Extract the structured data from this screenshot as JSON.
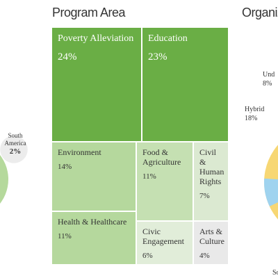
{
  "chart_data": [
    {
      "type": "bubble",
      "categories": [
        "South America"
      ],
      "values": [
        2
      ],
      "value_labels": [
        "2%"
      ],
      "color": "#ececec"
    },
    {
      "type": "treemap",
      "title": "Program Area",
      "categories": [
        "Poverty Alleviation",
        "Education",
        "Environment",
        "Health & Healthcare",
        "Food & Agriculture",
        "Civil & Human Rights",
        "Civic Engagement",
        "Arts & Culture"
      ],
      "values": [
        24,
        23,
        14,
        11,
        11,
        7,
        6,
        4
      ],
      "value_labels": [
        "24%",
        "23%",
        "14%",
        "11%",
        "11%",
        "7%",
        "6%",
        "4%"
      ],
      "colors": [
        "#6aae45",
        "#6aae45",
        "#b5d89d",
        "#b5d89d",
        "#c5e0b2",
        "#dbe9d1",
        "#e1edd9",
        "#e9e9e9"
      ]
    },
    {
      "type": "pie",
      "title": "Organiz",
      "categories": [
        "Hybrid",
        "Und",
        "So"
      ],
      "values": [
        18,
        8,
        null
      ],
      "value_labels": [
        "18%",
        "8%",
        null
      ],
      "colors": [
        "#f7d774",
        "#9fd3ef",
        null
      ]
    }
  ]
}
